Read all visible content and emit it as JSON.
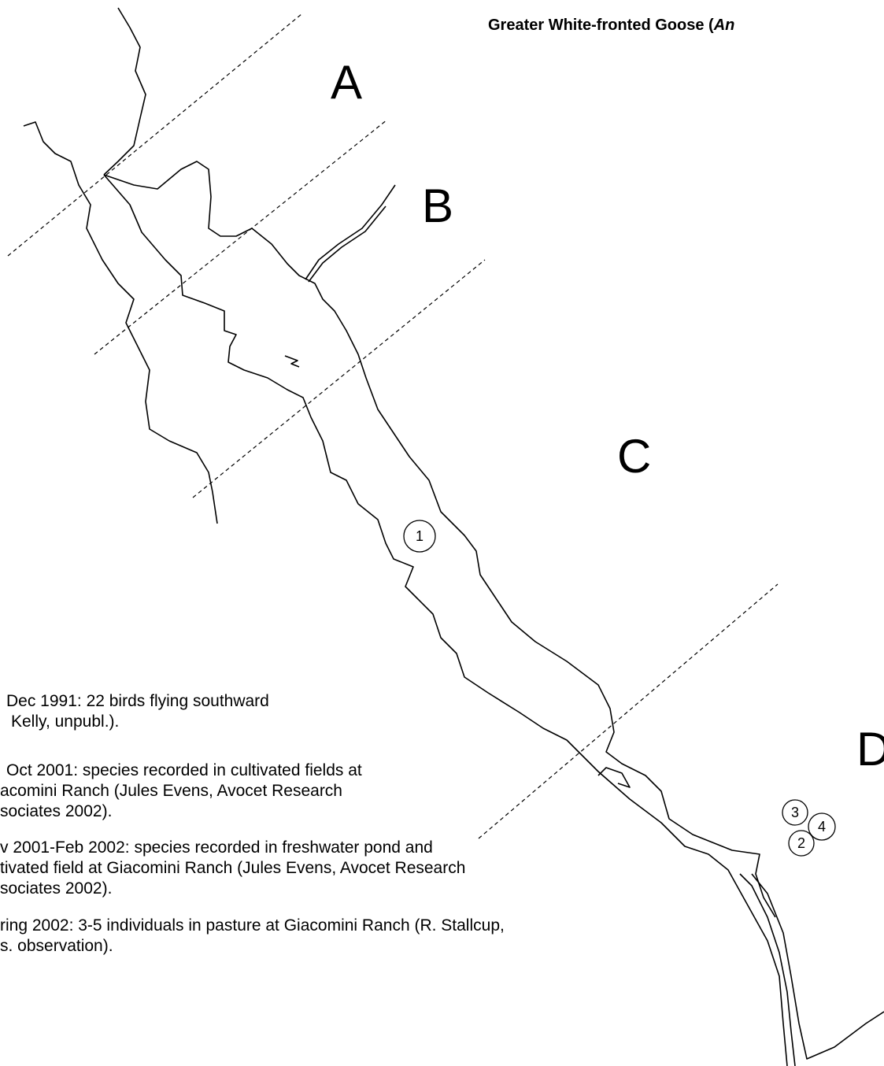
{
  "title": {
    "prefix": "Greater White-fronted Goose (",
    "italic": "An"
  },
  "zones": [
    "A",
    "B",
    "C",
    "D"
  ],
  "markers": [
    "1",
    "3",
    "4",
    "2"
  ],
  "notes": [
    [
      "Dec 1991:  22 birds flying southward",
      "Kelly, unpubl.)."
    ],
    [
      "Oct 2001:  species recorded in cultivated fields at",
      "acomini Ranch (Jules Evens, Avocet Research",
      "sociates 2002)."
    ],
    [
      "v 2001-Feb 2002: species recorded in freshwater pond and",
      "tivated field at Giacomini Ranch (Jules Evens, Avocet Research",
      "sociates 2002)."
    ],
    [
      "ring 2002:  3-5 individuals in pasture at Giacomini Ranch (R. Stallcup,",
      "s. observation)."
    ]
  ]
}
